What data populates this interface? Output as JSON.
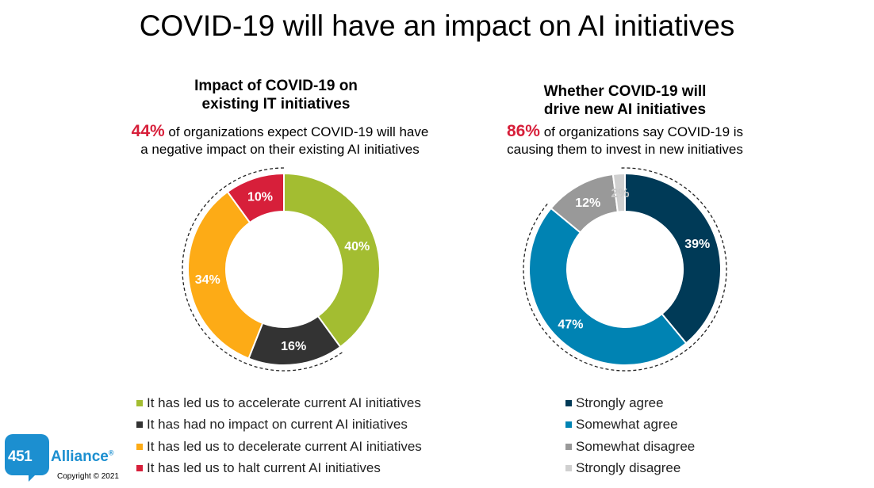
{
  "page": {
    "title": "COVID-19 will have an impact on AI initiatives"
  },
  "chart_data": [
    {
      "type": "donut",
      "title_line1": "Impact of COVID-19 on",
      "title_line2": "existing IT initiatives",
      "highlight": "44%",
      "subtitle_line1": " of organizations expect COVID-19 will have",
      "subtitle_line2": "a negative impact on their existing AI initiatives",
      "categories": [
        "It has led us to accelerate current AI initiatives",
        "It has had no impact on current AI initiatives",
        "It has led us to decelerate current AI initiatives",
        "It has led us to halt current AI initiatives"
      ],
      "values": [
        40,
        16,
        34,
        10
      ],
      "data_labels": [
        "40%",
        "16%",
        "34%",
        "10%"
      ],
      "colors": [
        "#a3bd31",
        "#333333",
        "#fdab16",
        "#d71f3a"
      ],
      "label_colors": [
        "#ffffff",
        "#ffffff",
        "#ffffff",
        "#ffffff"
      ],
      "dashed_arc": true,
      "legend_placement": "bottom"
    },
    {
      "type": "donut",
      "title_line1": "Whether COVID-19 will",
      "title_line2": "drive new AI initiatives",
      "highlight": "86%",
      "subtitle_line1": " of organizations say COVID-19 is",
      "subtitle_line2": "causing them to invest in new initiatives",
      "categories": [
        "Strongly agree",
        "Somewhat agree",
        "Somewhat disagree",
        "Strongly disagree"
      ],
      "values": [
        39,
        47,
        12,
        2
      ],
      "data_labels": [
        "39%",
        "47%",
        "12%",
        "2%"
      ],
      "colors": [
        "#003a57",
        "#0083b3",
        "#999999",
        "#d0d0d0"
      ],
      "label_colors": [
        "#ffffff",
        "#ffffff",
        "#ffffff",
        "#c8c8c8"
      ],
      "dashed_arc": true,
      "legend_placement": "bottom"
    }
  ],
  "logo": {
    "number": "451",
    "word": "Alliance",
    "mark": "®",
    "copyright": "Copyright © 2021"
  }
}
